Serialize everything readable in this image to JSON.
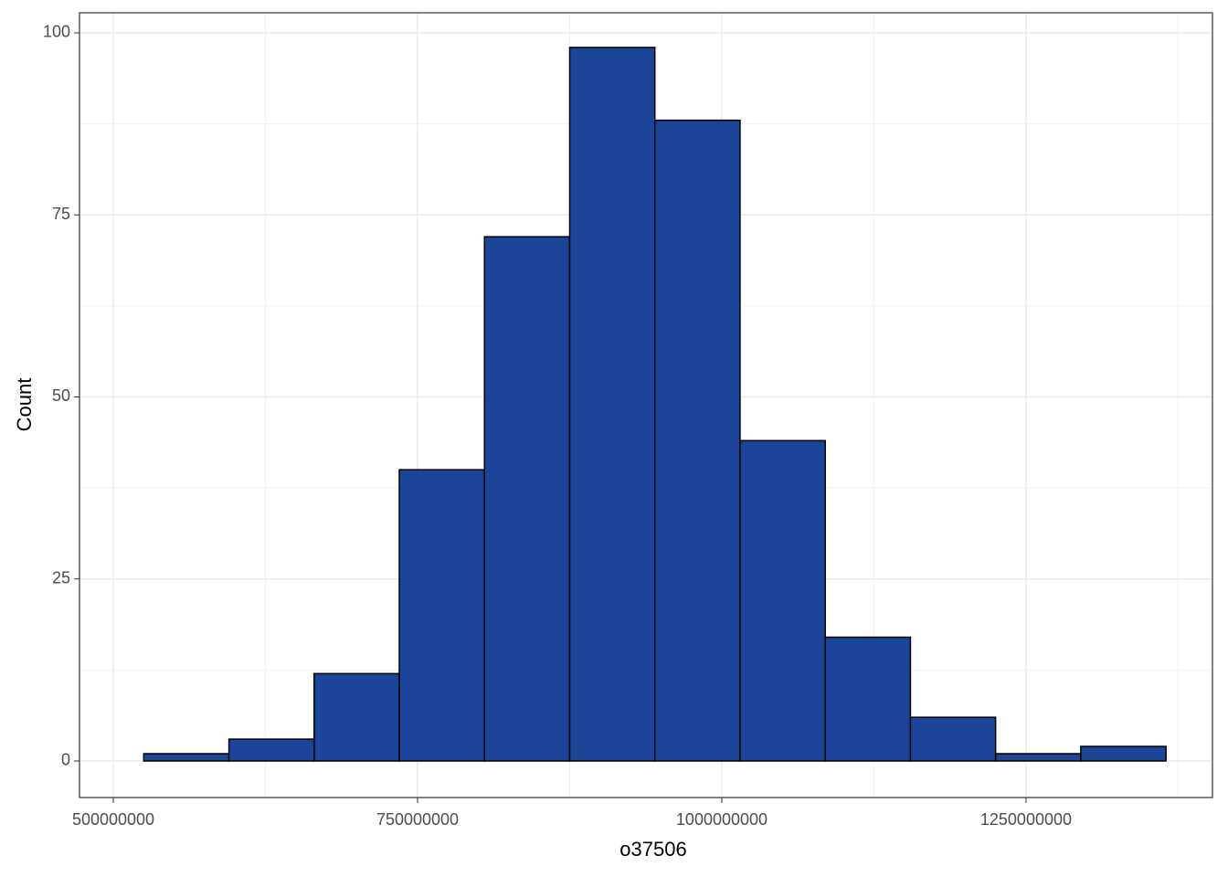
{
  "chart_data": {
    "type": "histogram",
    "x_label": "o37506",
    "y_label": "Count",
    "bins": [
      525000000,
      595000000,
      665000000,
      735000000,
      805000000,
      875000000,
      945000000,
      1015000000,
      1085000000,
      1155000000,
      1225000000,
      1295000000,
      1365000000
    ],
    "values": [
      1,
      3,
      12,
      40,
      72,
      98,
      88,
      44,
      17,
      6,
      1,
      2
    ],
    "color": "#1a4599",
    "xlim": [
      472200000,
      1403200000
    ],
    "xticks": [
      500000000,
      750000000,
      1000000000,
      1250000000
    ],
    "ylim": [
      -5.02,
      102.76
    ],
    "yticks": [
      0,
      25,
      50,
      75,
      100
    ],
    "grid": true
  }
}
